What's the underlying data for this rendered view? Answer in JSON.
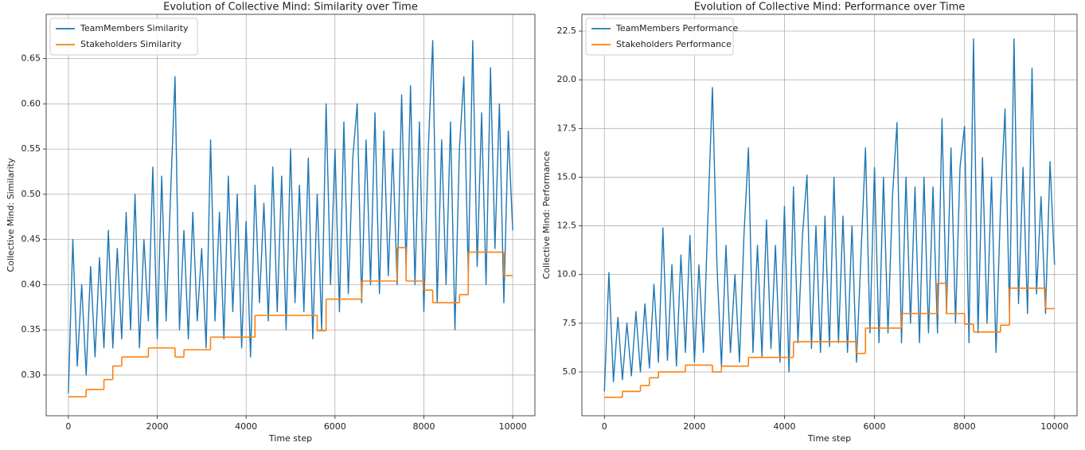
{
  "chart_data": [
    {
      "type": "line",
      "title": "Evolution of Collective Mind: Similarity over Time",
      "x_label": "Time step",
      "y_label": "Collective Mind: Similarity",
      "x": [
        0,
        100,
        200,
        300,
        400,
        500,
        600,
        700,
        800,
        900,
        1000,
        1100,
        1200,
        1300,
        1400,
        1500,
        1600,
        1700,
        1800,
        1900,
        2000,
        2100,
        2200,
        2300,
        2400,
        2500,
        2600,
        2700,
        2800,
        2900,
        3000,
        3100,
        3200,
        3300,
        3400,
        3500,
        3600,
        3700,
        3800,
        3900,
        4000,
        4100,
        4200,
        4300,
        4400,
        4500,
        4600,
        4700,
        4800,
        4900,
        5000,
        5100,
        5200,
        5300,
        5400,
        5500,
        5600,
        5700,
        5800,
        5900,
        6000,
        6100,
        6200,
        6300,
        6400,
        6500,
        6600,
        6700,
        6800,
        6900,
        7000,
        7100,
        7200,
        7300,
        7400,
        7500,
        7600,
        7700,
        7800,
        7900,
        8000,
        8100,
        8200,
        8300,
        8400,
        8500,
        8600,
        8700,
        8800,
        8900,
        9000,
        9100,
        9200,
        9300,
        9400,
        9500,
        9600,
        9700,
        9800,
        9900,
        10000
      ],
      "series": [
        {
          "name": "TeamMembers Similarity",
          "color": "#1f77b4",
          "values": [
            0.28,
            0.45,
            0.31,
            0.4,
            0.3,
            0.42,
            0.32,
            0.43,
            0.33,
            0.46,
            0.33,
            0.44,
            0.34,
            0.48,
            0.35,
            0.5,
            0.33,
            0.45,
            0.36,
            0.53,
            0.34,
            0.52,
            0.36,
            0.5,
            0.63,
            0.35,
            0.46,
            0.34,
            0.48,
            0.36,
            0.44,
            0.33,
            0.56,
            0.36,
            0.48,
            0.34,
            0.52,
            0.37,
            0.5,
            0.33,
            0.47,
            0.32,
            0.51,
            0.38,
            0.49,
            0.36,
            0.53,
            0.37,
            0.52,
            0.35,
            0.55,
            0.38,
            0.51,
            0.37,
            0.54,
            0.34,
            0.5,
            0.35,
            0.6,
            0.4,
            0.55,
            0.37,
            0.58,
            0.39,
            0.54,
            0.6,
            0.38,
            0.56,
            0.4,
            0.59,
            0.39,
            0.57,
            0.41,
            0.55,
            0.4,
            0.61,
            0.42,
            0.62,
            0.4,
            0.58,
            0.37,
            0.55,
            0.67,
            0.38,
            0.56,
            0.4,
            0.58,
            0.35,
            0.55,
            0.63,
            0.41,
            0.67,
            0.42,
            0.59,
            0.4,
            0.64,
            0.44,
            0.6,
            0.38,
            0.57,
            0.46
          ]
        },
        {
          "name": "Stakeholders Similarity",
          "color": "#ff7f0e",
          "drawstyle": "steps-post",
          "x": [
            0,
            400,
            800,
            1000,
            1200,
            1800,
            2400,
            2600,
            3200,
            4200,
            5600,
            5800,
            6600,
            7400,
            7600,
            8000,
            8200,
            8800,
            9000,
            9800,
            10000
          ],
          "values": [
            0.276,
            0.284,
            0.295,
            0.31,
            0.32,
            0.33,
            0.32,
            0.328,
            0.342,
            0.366,
            0.349,
            0.384,
            0.404,
            0.441,
            0.404,
            0.394,
            0.38,
            0.389,
            0.436,
            0.41,
            0.41
          ]
        }
      ],
      "xlim": [
        -500,
        10500
      ],
      "xticks": [
        0,
        2000,
        4000,
        6000,
        8000,
        10000
      ],
      "ylim": [
        0.255,
        0.699
      ],
      "yticks": [
        {
          "value": 0.3,
          "label": "0.30"
        },
        0.35,
        {
          "value": 0.4,
          "label": "0.40"
        },
        0.45,
        {
          "value": 0.5,
          "label": "0.50"
        },
        0.55,
        {
          "value": 0.6,
          "label": "0.60"
        },
        0.65
      ],
      "grid": true,
      "legend": "upper left"
    },
    {
      "type": "line",
      "title": "Evolution of Collective Mind: Performance over Time",
      "x_label": "Time step",
      "y_label": "Collective Mind: Performance",
      "x": [
        0,
        100,
        200,
        300,
        400,
        500,
        600,
        700,
        800,
        900,
        1000,
        1100,
        1200,
        1300,
        1400,
        1500,
        1600,
        1700,
        1800,
        1900,
        2000,
        2100,
        2200,
        2300,
        2400,
        2500,
        2600,
        2700,
        2800,
        2900,
        3000,
        3100,
        3200,
        3300,
        3400,
        3500,
        3600,
        3700,
        3800,
        3900,
        4000,
        4100,
        4200,
        4300,
        4400,
        4500,
        4600,
        4700,
        4800,
        4900,
        5000,
        5100,
        5200,
        5300,
        5400,
        5500,
        5600,
        5700,
        5800,
        5900,
        6000,
        6100,
        6200,
        6300,
        6400,
        6500,
        6600,
        6700,
        6800,
        6900,
        7000,
        7100,
        7200,
        7300,
        7400,
        7500,
        7600,
        7700,
        7800,
        7900,
        8000,
        8100,
        8200,
        8300,
        8400,
        8500,
        8600,
        8700,
        8800,
        8900,
        9000,
        9100,
        9200,
        9300,
        9400,
        9500,
        9600,
        9700,
        9800,
        9900,
        10000
      ],
      "series": [
        {
          "name": "TeamMembers Performance",
          "color": "#1f77b4",
          "values": [
            4.0,
            10.1,
            4.5,
            7.8,
            4.6,
            7.5,
            4.8,
            8.1,
            5.0,
            8.5,
            5.2,
            9.5,
            5.5,
            12.4,
            5.6,
            10.5,
            5.3,
            11.0,
            6.0,
            12.0,
            5.5,
            10.5,
            6.0,
            13.0,
            19.6,
            10.5,
            5.3,
            11.5,
            6.0,
            10.0,
            5.5,
            12.0,
            16.5,
            6.0,
            11.5,
            5.8,
            12.8,
            6.2,
            11.5,
            5.5,
            13.5,
            5.0,
            14.5,
            6.5,
            12.0,
            15.1,
            6.2,
            12.5,
            6.0,
            13.0,
            6.3,
            15.0,
            6.5,
            13.0,
            6.0,
            12.5,
            5.5,
            11.0,
            16.5,
            7.0,
            15.5,
            6.5,
            15.0,
            7.0,
            14.0,
            17.8,
            6.5,
            15.0,
            7.5,
            14.5,
            6.5,
            15.0,
            7.0,
            14.5,
            7.0,
            18.0,
            8.0,
            16.5,
            7.5,
            15.5,
            17.6,
            6.5,
            22.1,
            7.0,
            16.0,
            7.5,
            15.0,
            6.0,
            13.5,
            18.5,
            8.0,
            22.1,
            8.5,
            15.5,
            8.0,
            20.6,
            9.0,
            14.0,
            8.0,
            15.8,
            10.5
          ]
        },
        {
          "name": "Stakeholders Performance",
          "color": "#ff7f0e",
          "drawstyle": "steps-post",
          "x": [
            0,
            400,
            800,
            1000,
            1200,
            1800,
            2400,
            2600,
            3200,
            4200,
            5600,
            5800,
            6600,
            7400,
            7600,
            8000,
            8200,
            8800,
            9000,
            9800,
            10000
          ],
          "values": [
            3.7,
            4.0,
            4.3,
            4.7,
            5.0,
            5.35,
            5.0,
            5.3,
            5.75,
            6.55,
            5.95,
            7.25,
            8.0,
            9.55,
            8.0,
            7.45,
            7.05,
            7.4,
            9.3,
            8.25,
            8.25
          ]
        }
      ],
      "xlim": [
        -500,
        10500
      ],
      "xticks": [
        0,
        2000,
        4000,
        6000,
        8000,
        10000
      ],
      "ylim": [
        2.75,
        23.36
      ],
      "yticks": [
        {
          "value": 5,
          "label": "5.0"
        },
        7.5,
        {
          "value": 10,
          "label": "10.0"
        },
        12.5,
        {
          "value": 15,
          "label": "15.0"
        },
        17.5,
        {
          "value": 20,
          "label": "20.0"
        },
        22.5
      ],
      "grid": true,
      "legend": "upper left"
    }
  ]
}
